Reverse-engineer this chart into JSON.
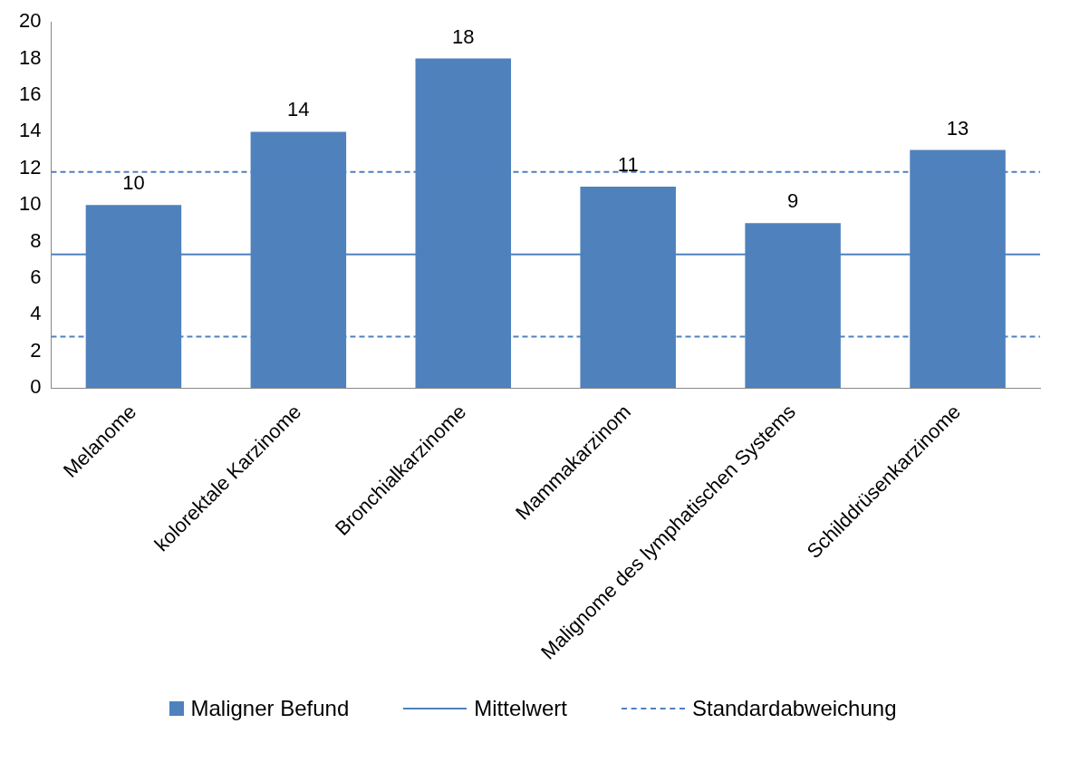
{
  "chart_data": {
    "type": "bar",
    "categories": [
      "Melanome",
      "kolorektale Karzinome",
      "Bronchialkarzinome",
      "Mammakarzinom",
      "Malignome des lymphatischen Systems",
      "Schilddrüsenkarzinome"
    ],
    "series": [
      {
        "name": "Maligner Befund",
        "color": "#4f81bd",
        "values": [
          10,
          14,
          18,
          11,
          9,
          13
        ]
      }
    ],
    "ylim": [
      0,
      20
    ],
    "yticks": [
      0,
      2,
      4,
      6,
      8,
      10,
      12,
      14,
      16,
      18,
      20
    ],
    "grid": false,
    "data_labels": true,
    "legend": "bottom",
    "ref_lines": [
      {
        "axis": "y",
        "value": 7.3,
        "label": "Mittelwert",
        "color": "#4f81bd",
        "line_style": "solid"
      },
      {
        "axis": "y",
        "value": 11.8,
        "label": "Standardabweichung",
        "color": "#4f81bd",
        "line_style": "dashed"
      },
      {
        "axis": "y",
        "value": 2.8,
        "label": null,
        "color": "#4f81bd",
        "line_style": "dashed"
      }
    ]
  }
}
